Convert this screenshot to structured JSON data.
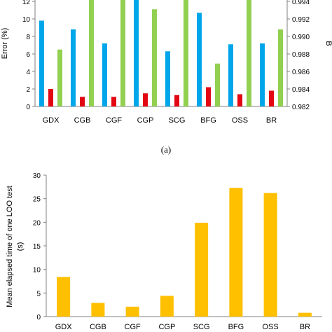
{
  "caption_a": "(a)",
  "chart_data": [
    {
      "type": "bar",
      "categories": [
        "GDX",
        "CGB",
        "CGF",
        "CGP",
        "SCG",
        "BFG",
        "OSS",
        "BR"
      ],
      "ylabel": "Error (%)",
      "ylabel_right": "B",
      "ylim": [
        0,
        12
      ],
      "ylim_visible": [
        0,
        12
      ],
      "y_ticks": [
        "0",
        "2",
        "4",
        "6",
        "8",
        "10",
        "12"
      ],
      "y2lim": [
        0.982,
        0.994
      ],
      "y2_ticks": [
        "0.982",
        "0.984",
        "0.986",
        "0.988",
        "0.990",
        "0.992",
        "0.994"
      ],
      "series": [
        {
          "color": "#00a6ea",
          "axis": "left",
          "values": [
            9.8,
            8.8,
            7.2,
            12.3,
            6.3,
            10.7,
            7.1,
            7.2
          ]
        },
        {
          "color": "#e30613",
          "axis": "left",
          "values": [
            2.0,
            1.1,
            1.1,
            1.5,
            1.3,
            2.2,
            1.4,
            1.8
          ]
        },
        {
          "color": "#92d050",
          "axis": "right",
          "values": [
            0.9885,
            0.9945,
            0.9945,
            0.9931,
            0.9945,
            0.9869,
            0.9945,
            0.9908
          ]
        }
      ]
    },
    {
      "type": "bar",
      "categories": [
        "GDX",
        "CGB",
        "CGF",
        "CGP",
        "SCG",
        "BFG",
        "OSS",
        "BR"
      ],
      "ylabel": "Mean elapsed time of one LOO test (s)",
      "ylim": [
        0,
        30
      ],
      "y_ticks": [
        "0",
        "5",
        "10",
        "15",
        "20",
        "25",
        "30"
      ],
      "series": [
        {
          "color": "#ffc000",
          "values": [
            8.4,
            2.9,
            2.1,
            4.4,
            19.9,
            27.3,
            26.2,
            0.8
          ]
        }
      ]
    }
  ]
}
